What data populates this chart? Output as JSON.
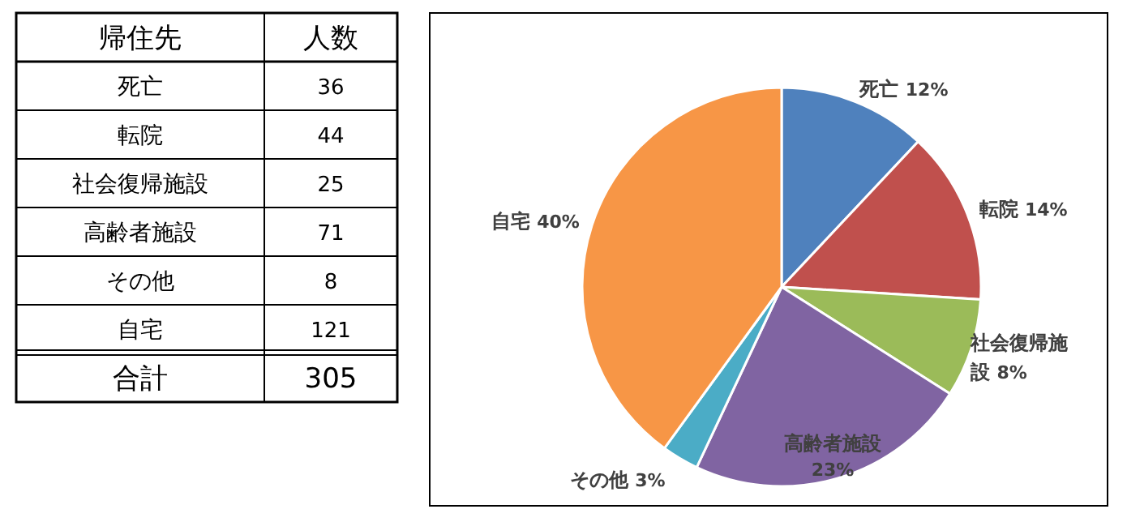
{
  "chart_data": {
    "type": "pie",
    "categories": [
      "死亡",
      "転院",
      "社会復帰施設",
      "高齢者施設",
      "その他",
      "自宅"
    ],
    "values": [
      12,
      14,
      8,
      23,
      3,
      40
    ],
    "colors": [
      "#4f81bd",
      "#c0504d",
      "#9bbb59",
      "#8064a2",
      "#4bacc6",
      "#f79646"
    ],
    "value_labels": [
      "12%",
      "14%",
      "8%",
      "23%",
      "3%",
      "40%"
    ],
    "annotations": [
      "帰住先",
      "人数",
      "36",
      "44",
      "25",
      "71",
      "8",
      "121",
      "合計",
      "305"
    ]
  }
}
